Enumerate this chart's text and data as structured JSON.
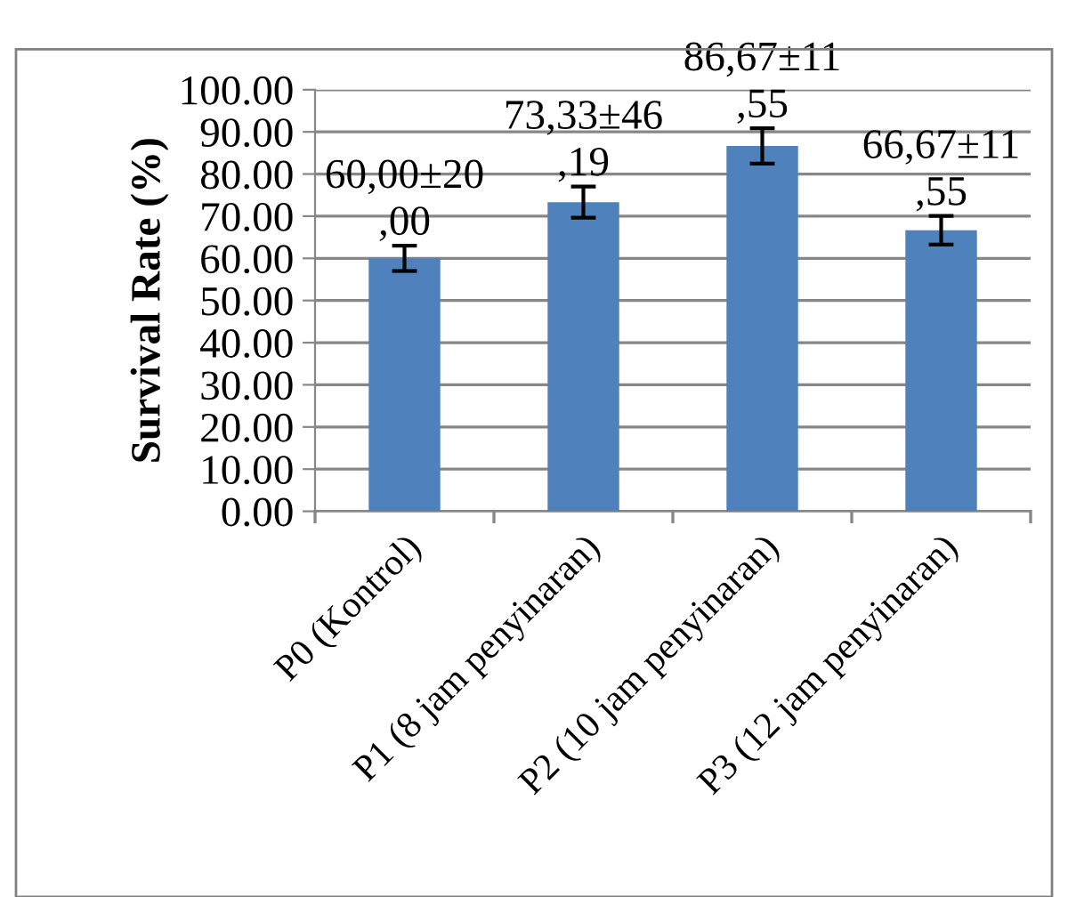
{
  "chart_data": {
    "type": "bar",
    "ylabel": "Survival Rate (%)",
    "categories": [
      "P0 (Kontrol)",
      "P1 (8 jam penyinaran)",
      "P2 (10 jam penyinaran)",
      "P3 (12 jam penyinaran)"
    ],
    "values": [
      60.0,
      73.33,
      86.67,
      66.67
    ],
    "errors": [
      3.0,
      3.7,
      4.2,
      3.4
    ],
    "value_labels": [
      "60,00±20\n,00",
      "73,33±46\n,19",
      "86,67±11\n,55",
      "66,67±11\n,55"
    ],
    "color": "#4f81bd",
    "ylim": [
      0,
      100
    ],
    "yticks": [
      {
        "value": 0,
        "label": "0.00"
      },
      {
        "value": 10,
        "label": "10.00"
      },
      {
        "value": 20,
        "label": "20.00"
      },
      {
        "value": 30,
        "label": "30.00"
      },
      {
        "value": 40,
        "label": "40.00"
      },
      {
        "value": 50,
        "label": "50.00"
      },
      {
        "value": 60,
        "label": "60.00"
      },
      {
        "value": 70,
        "label": "70.00"
      },
      {
        "value": 80,
        "label": "80.00"
      },
      {
        "value": 90,
        "label": "90.00"
      },
      {
        "value": 100,
        "label": "100.00"
      }
    ],
    "grid": "y",
    "legend": false
  }
}
